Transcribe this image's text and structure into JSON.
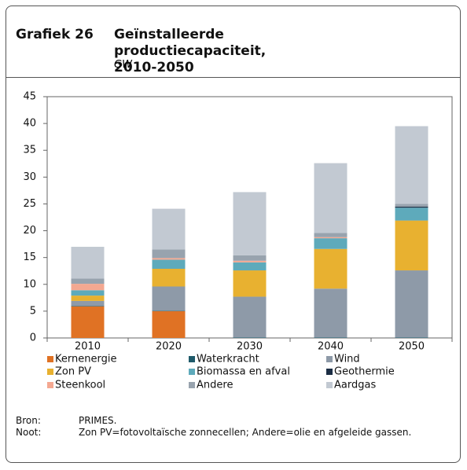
{
  "chart_data": {
    "type": "stacked_bar",
    "label": "Grafiek 26",
    "title": "Geïnstalleerde productiecapaciteit, 2010-2050",
    "subtitle": "GW",
    "categories": [
      "2010",
      "2020",
      "2030",
      "2040",
      "2050"
    ],
    "series": [
      {
        "name": "Kernenergie",
        "color": "#e07224",
        "values": [
          5.9,
          5.0,
          0,
          0,
          0
        ]
      },
      {
        "name": "Waterkracht",
        "color": "#1f5a6a",
        "values": [
          0.1,
          0.1,
          0.1,
          0.1,
          0.1
        ]
      },
      {
        "name": "Wind",
        "color": "#8e9aa8",
        "values": [
          0.9,
          4.5,
          7.6,
          9.1,
          12.5
        ]
      },
      {
        "name": "Zon PV",
        "color": "#e8b130",
        "values": [
          1.0,
          3.3,
          4.9,
          7.4,
          9.3
        ]
      },
      {
        "name": "Biomassa en afval",
        "color": "#5eaabb",
        "values": [
          1.0,
          1.7,
          1.5,
          2.0,
          2.4
        ]
      },
      {
        "name": "Geothermie",
        "color": "#1b2d44",
        "values": [
          0,
          0,
          0,
          0,
          0.2
        ]
      },
      {
        "name": "Steenkool",
        "color": "#f4a891",
        "values": [
          1.2,
          0.3,
          0.3,
          0.2,
          0
        ]
      },
      {
        "name": "Andere",
        "color": "#98a3ae",
        "values": [
          1.0,
          1.6,
          1.0,
          0.8,
          0.5
        ]
      },
      {
        "name": "Aardgas",
        "color": "#c2c9d2",
        "values": [
          5.9,
          7.6,
          11.8,
          13.0,
          14.5
        ]
      }
    ],
    "ylim": [
      0,
      45
    ],
    "yticks": [
      0,
      5,
      10,
      15,
      20,
      25,
      30,
      35,
      40,
      45
    ],
    "legend": "bottom"
  },
  "notes": {
    "source_label": "Bron:",
    "source": "PRIMES.",
    "note_label": "Noot:",
    "note": "Zon PV=fotovoltaïsche zonnecellen; Andere=olie en afgeleide gassen."
  }
}
